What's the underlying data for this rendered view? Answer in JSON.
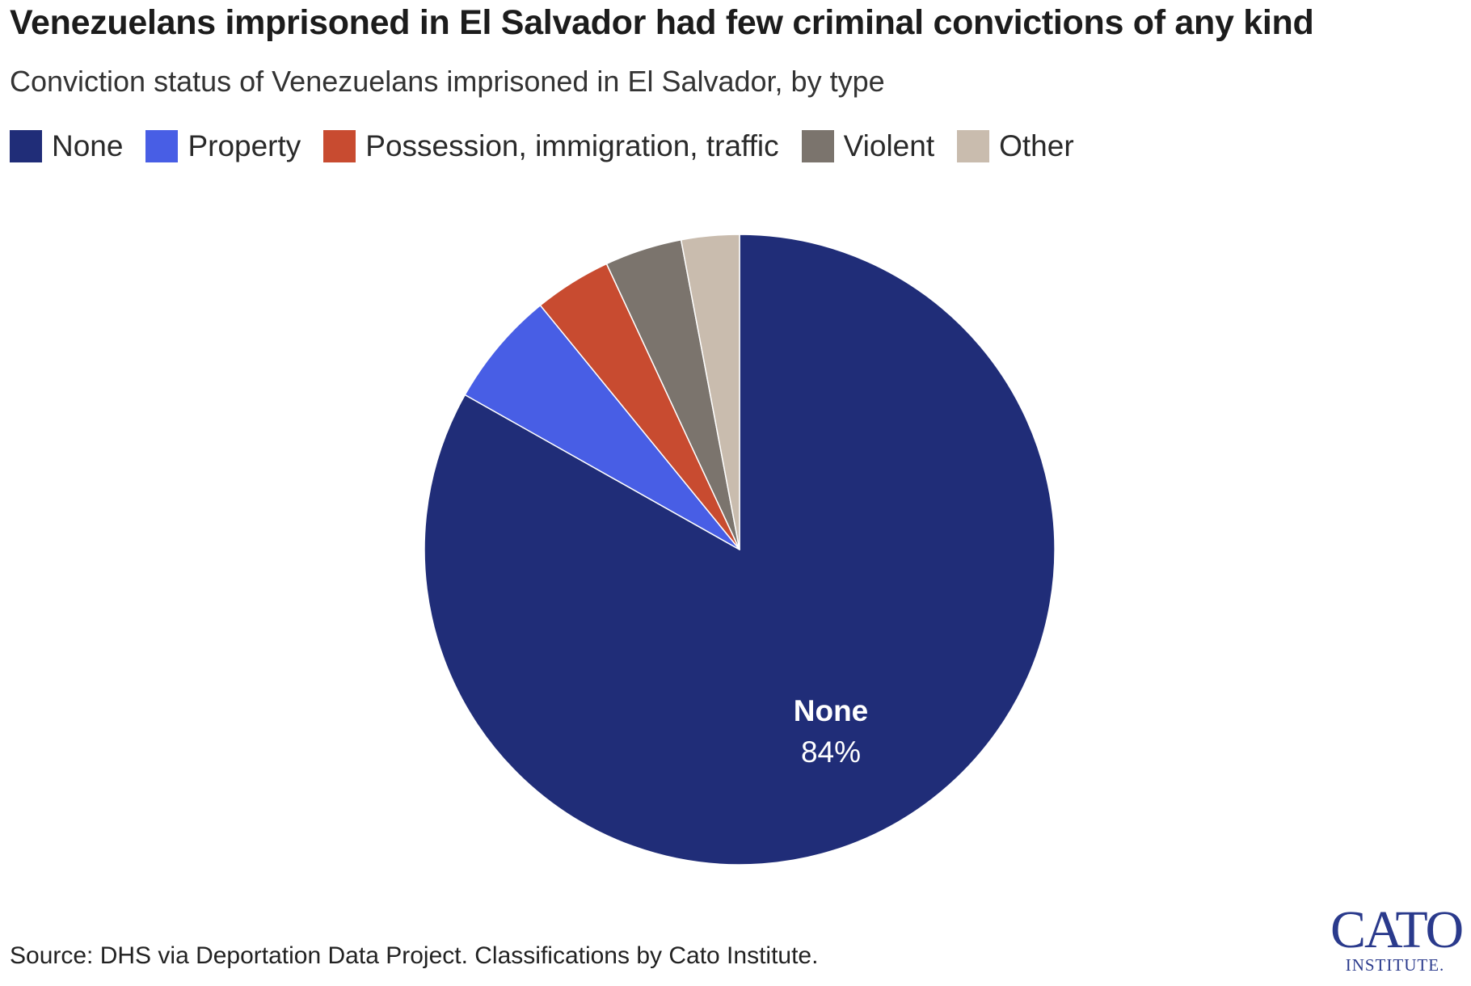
{
  "header": {
    "title": "Venezuelans imprisoned in El Salvador had few criminal convictions of any kind",
    "subtitle": "Conviction status of Venezuelans imprisoned in El Salvador, by type"
  },
  "legend": [
    {
      "label": "None",
      "color": "#202d78"
    },
    {
      "label": "Property",
      "color": "#485ee5"
    },
    {
      "label": "Possession, immigration, traffic",
      "color": "#c84b30"
    },
    {
      "label": "Violent",
      "color": "#7b746d"
    },
    {
      "label": "Other",
      "color": "#c9bcae"
    }
  ],
  "chart_data": {
    "type": "pie",
    "title": "Venezuelans imprisoned in El Salvador had few criminal convictions of any kind",
    "subtitle": "Conviction status of Venezuelans imprisoned in El Salvador, by type",
    "start": "12 o'clock, clockwise",
    "slices": [
      {
        "label": "None",
        "value": 84,
        "color": "#202d78",
        "label_text": "84%"
      },
      {
        "label": "Property",
        "value": 6,
        "color": "#485ee5"
      },
      {
        "label": "Possession, immigration, traffic",
        "value": 4,
        "color": "#c84b30"
      },
      {
        "label": "Violent",
        "value": 4,
        "color": "#7b746d"
      },
      {
        "label": "Other",
        "value": 3,
        "color": "#c9bcae"
      }
    ],
    "slice_label": {
      "name": "None",
      "value_text": "84%"
    },
    "legend_position": "top-left"
  },
  "footer": {
    "source": "Source: DHS via Deportation Data Project. Classifications by Cato Institute.",
    "logo_main": "CATO",
    "logo_sub": "INSTITUTE."
  }
}
